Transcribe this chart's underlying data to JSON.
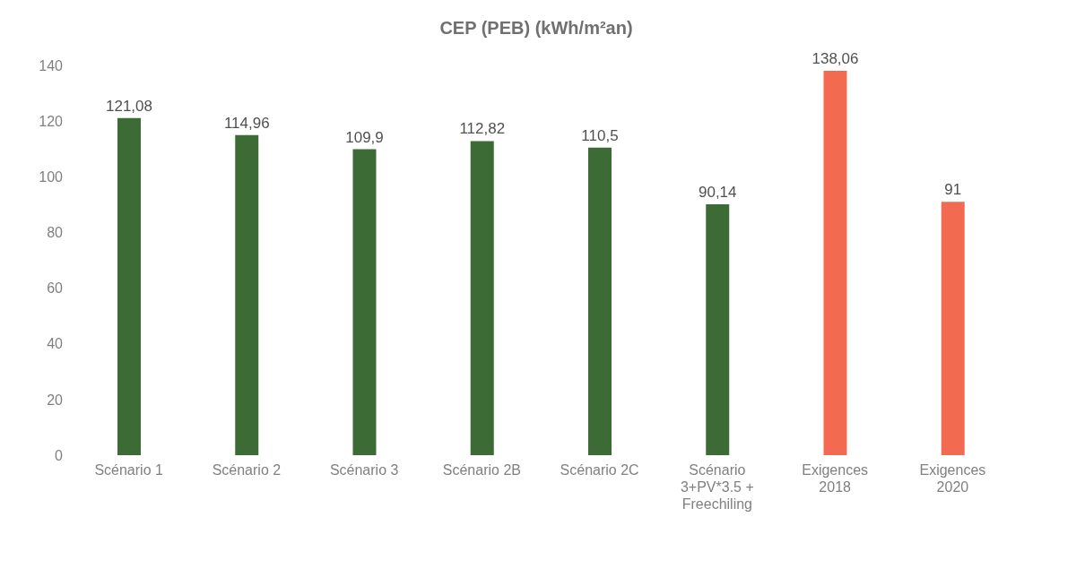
{
  "chart_data": {
    "type": "bar",
    "title": "CEP (PEB) (kWh/m²an)",
    "categories": [
      "Scénario 1",
      "Scénario 2",
      "Scénario 3",
      "Scénario 2B",
      "Scénario 2C",
      "Scénario 3+PV*3.5 + Freechiling",
      "Exigences 2018",
      "Exigences 2020"
    ],
    "values": [
      121.08,
      114.96,
      109.9,
      112.82,
      110.5,
      90.14,
      138.06,
      91
    ],
    "colors": [
      "#3d6b35",
      "#3d6b35",
      "#3d6b35",
      "#3d6b35",
      "#3d6b35",
      "#3d6b35",
      "#f26a4f",
      "#f26a4f"
    ],
    "value_labels": [
      "121,08",
      "114,96",
      "109,9",
      "112,82",
      "110,5",
      "90,14",
      "138,06",
      "91"
    ],
    "ylim": [
      0,
      140
    ],
    "yticks": [
      0,
      20,
      40,
      60,
      80,
      100,
      120,
      140
    ],
    "grid": false
  }
}
